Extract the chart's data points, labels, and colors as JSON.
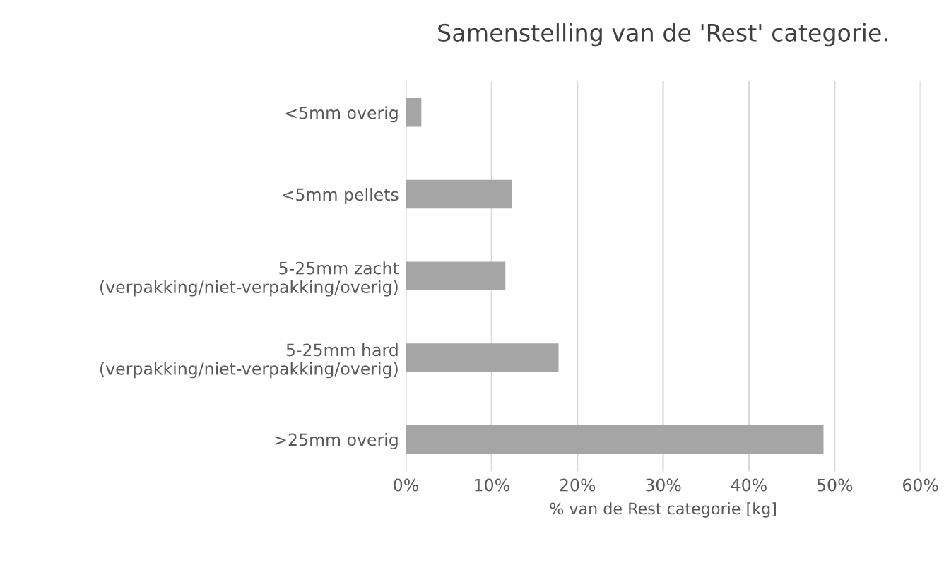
{
  "chart_data": {
    "type": "bar",
    "orientation": "horizontal",
    "title": "Samenstelling van de 'Rest' categorie.",
    "xlabel": "% van de Rest categorie [kg]",
    "categories": [
      "<5mm overig",
      "<5mm pellets",
      "5-25mm zacht\n(verpakking/niet-verpakking/overig)",
      "5-25mm hard\n(verpakking/niet-verpakking/overig)",
      ">25mm overig"
    ],
    "values": [
      1.8,
      12.4,
      11.6,
      17.8,
      48.7
    ],
    "color": "#a5a5a5",
    "xlim": [
      0,
      60
    ],
    "xticks": [
      {
        "value": 0,
        "label": "0%"
      },
      {
        "value": 10,
        "label": "10%"
      },
      {
        "value": 20,
        "label": "20%"
      },
      {
        "value": 30,
        "label": "30%"
      },
      {
        "value": 40,
        "label": "40%"
      },
      {
        "value": 50,
        "label": "50%"
      },
      {
        "value": 60,
        "label": "60%"
      }
    ],
    "grid": "x"
  }
}
